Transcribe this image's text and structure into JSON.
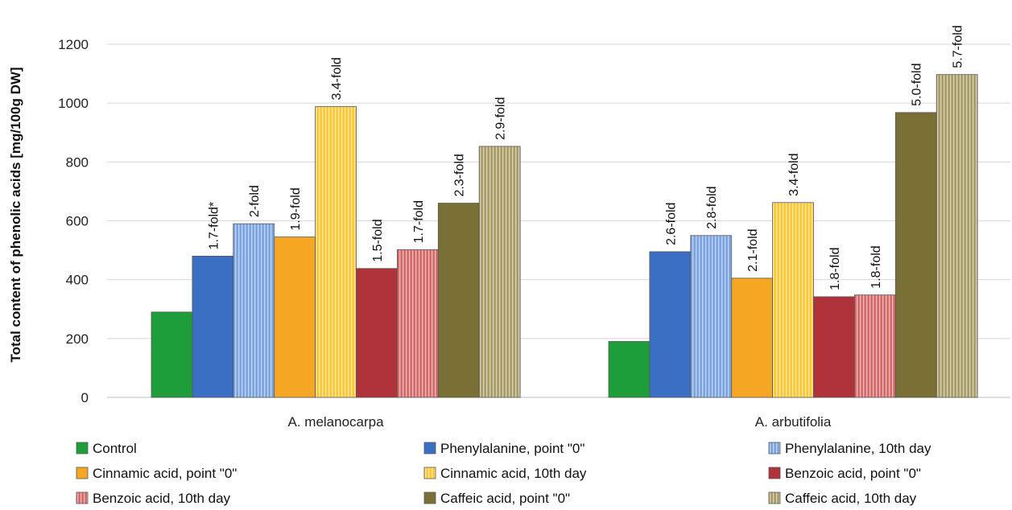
{
  "chart_data": {
    "type": "bar",
    "title": "",
    "xlabel": "",
    "ylabel": "Total content of phenolic acids [mg/100g DW]",
    "ylim": [
      0,
      1200
    ],
    "yticks": [
      0,
      200,
      400,
      600,
      800,
      1000,
      1200
    ],
    "grid": "horizontal",
    "legend_position": "bottom",
    "categories": [
      "A. melanocarpa",
      "A. arbutifolia"
    ],
    "series": [
      {
        "name": "Control",
        "color": "#1e9e3a",
        "pattern": "solid",
        "values": [
          290,
          190
        ],
        "labels": [
          "",
          ""
        ]
      },
      {
        "name": "Phenylalanine, point \"0\"",
        "color": "#3a6fc4",
        "pattern": "solid",
        "values": [
          480,
          495
        ],
        "labels": [
          "1.7-fold*",
          "2.6-fold"
        ]
      },
      {
        "name": "Phenylalanine, 10th day",
        "color": "#7aa3e0",
        "pattern": "striped",
        "values": [
          590,
          550
        ],
        "labels": [
          "2-fold",
          "2.8-fold"
        ]
      },
      {
        "name": "Cinnamic acid, point \"0\"",
        "color": "#f5a623",
        "pattern": "solid",
        "values": [
          545,
          405
        ],
        "labels": [
          "1.9-fold",
          "2.1-fold"
        ]
      },
      {
        "name": "Cinnamic acid, 10th day",
        "color": "#fcc83a",
        "pattern": "striped",
        "values": [
          988,
          662
        ],
        "labels": [
          "3.4-fold",
          "3.4-fold"
        ]
      },
      {
        "name": "Benzoic acid, point \"0\"",
        "color": "#b0323a",
        "pattern": "solid",
        "values": [
          438,
          342
        ],
        "labels": [
          "1.5-fold",
          "1.8-fold"
        ]
      },
      {
        "name": "Benzoic acid, 10th day",
        "color": "#d46a6a",
        "pattern": "striped",
        "values": [
          502,
          348
        ],
        "labels": [
          "1.7-fold",
          "1.8-fold"
        ]
      },
      {
        "name": "Caffeic acid, point \"0\"",
        "color": "#7a7035",
        "pattern": "solid",
        "values": [
          660,
          968
        ],
        "labels": [
          "2.3-fold",
          "5.0-fold"
        ]
      },
      {
        "name": "Caffeic acid, 10th day",
        "color": "#a89c68",
        "pattern": "striped",
        "values": [
          853,
          1097
        ],
        "labels": [
          "2.9-fold",
          "5.7-fold"
        ]
      }
    ]
  }
}
